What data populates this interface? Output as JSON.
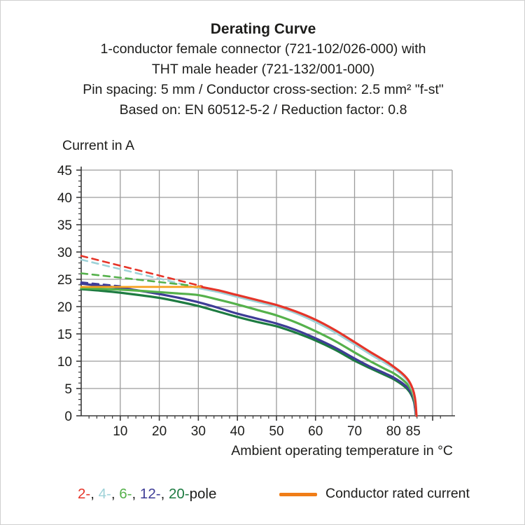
{
  "header": {
    "title": "Derating Curve",
    "subtitle_lines": [
      "1-conductor female connector (721-102/026-000) with",
      "THT male header (721-132/001-000)",
      "Pin spacing: 5 mm / Conductor cross-section: 2.5 mm² \"f-st\"",
      "Based on: EN 60512-5-2 / Reduction factor: 0.8"
    ]
  },
  "colors": {
    "pole2_red": "#e63529",
    "pole4_cyan": "#9ed2d8",
    "pole6_green": "#55b14b",
    "pole12_indigo": "#3e3c96",
    "pole20_darkgreen": "#1d7b41",
    "rated_orange_curve": "#f5a01e",
    "rated_orange_swatch": "#f07d17",
    "grid": "#9c9c9c",
    "axis": "#3a3a3a",
    "text": "#1d1d1b"
  },
  "chart_data": {
    "type": "line",
    "title": "Derating Curve",
    "xlabel": "Ambient operating temperature in °C",
    "ylabel": "Current in A",
    "xlim": [
      0,
      95
    ],
    "ylim": [
      0,
      45
    ],
    "grid": true,
    "x_gridlines": [
      10,
      20,
      30,
      40,
      50,
      60,
      70,
      80,
      90
    ],
    "x_tick_labels": [
      10,
      20,
      30,
      40,
      50,
      60,
      70,
      80,
      85
    ],
    "x_minor_step": 2,
    "y_ticks": [
      0,
      5,
      10,
      15,
      20,
      25,
      30,
      35,
      40,
      45
    ],
    "y_minor_step": 1,
    "series": [
      {
        "name": "2-pole-above-rated",
        "color": "#e63529",
        "style": "dashed",
        "width": 2.6,
        "points": [
          [
            0,
            29.3
          ],
          [
            31,
            23.7
          ]
        ]
      },
      {
        "name": "4-pole-above-rated",
        "color": "#9ed2d8",
        "style": "dashed",
        "width": 2.6,
        "points": [
          [
            0,
            28.6
          ],
          [
            29,
            23.55
          ]
        ]
      },
      {
        "name": "6-pole-above-rated",
        "color": "#55b14b",
        "style": "dashed",
        "width": 2.6,
        "points": [
          [
            0,
            26.1
          ],
          [
            27.5,
            23.9
          ]
        ]
      },
      {
        "name": "12-pole-above-rated",
        "color": "#3e3c96",
        "style": "dashed",
        "width": 2.6,
        "points": [
          [
            0,
            24.45
          ],
          [
            10,
            23.75
          ]
        ]
      },
      {
        "name": "20-pole",
        "color": "#1d7b41",
        "style": "solid",
        "width": 3.2,
        "points": [
          [
            0,
            23.2
          ],
          [
            5,
            22.9
          ],
          [
            10,
            22.55
          ],
          [
            15,
            22.1
          ],
          [
            20,
            21.6
          ],
          [
            25,
            20.9
          ],
          [
            30,
            20.1
          ],
          [
            35,
            19.1
          ],
          [
            40,
            18.1
          ],
          [
            45,
            17.2
          ],
          [
            50,
            16.4
          ],
          [
            55,
            15.2
          ],
          [
            60,
            13.8
          ],
          [
            65,
            12.1
          ],
          [
            70,
            10.1
          ],
          [
            74,
            8.7
          ],
          [
            78,
            7.4
          ],
          [
            80,
            6.7
          ],
          [
            82,
            5.8
          ],
          [
            83.5,
            4.9
          ],
          [
            84.5,
            3.9
          ],
          [
            85.2,
            2.6
          ],
          [
            85.5,
            1.3
          ],
          [
            85.7,
            0
          ]
        ]
      },
      {
        "name": "12-pole",
        "color": "#3e3c96",
        "style": "solid",
        "width": 3.2,
        "points": [
          [
            0,
            24.2
          ],
          [
            5,
            23.8
          ],
          [
            10,
            23.45
          ],
          [
            15,
            22.9
          ],
          [
            20,
            22.3
          ],
          [
            25,
            21.6
          ],
          [
            30,
            20.8
          ],
          [
            35,
            19.8
          ],
          [
            40,
            18.7
          ],
          [
            45,
            17.8
          ],
          [
            50,
            16.9
          ],
          [
            55,
            15.7
          ],
          [
            60,
            14.2
          ],
          [
            65,
            12.5
          ],
          [
            70,
            10.5
          ],
          [
            74,
            9.0
          ],
          [
            78,
            7.7
          ],
          [
            80,
            7.0
          ],
          [
            82,
            6.1
          ],
          [
            83.5,
            5.2
          ],
          [
            84.5,
            4.2
          ],
          [
            85.2,
            2.9
          ],
          [
            85.5,
            1.5
          ],
          [
            85.7,
            0
          ]
        ]
      },
      {
        "name": "6-pole",
        "color": "#55b14b",
        "style": "solid",
        "width": 3.2,
        "points": [
          [
            0,
            23.4
          ],
          [
            5,
            23.25
          ],
          [
            10,
            23.1
          ],
          [
            15,
            22.9
          ],
          [
            20,
            22.65
          ],
          [
            25,
            22.4
          ],
          [
            30,
            22.1
          ],
          [
            35,
            21.3
          ],
          [
            40,
            20.4
          ],
          [
            45,
            19.4
          ],
          [
            50,
            18.4
          ],
          [
            55,
            17.1
          ],
          [
            60,
            15.5
          ],
          [
            65,
            13.7
          ],
          [
            70,
            11.6
          ],
          [
            74,
            10.0
          ],
          [
            78,
            8.5
          ],
          [
            80,
            7.8
          ],
          [
            82,
            6.8
          ],
          [
            83.5,
            5.8
          ],
          [
            84.5,
            4.7
          ],
          [
            85.2,
            3.3
          ],
          [
            85.6,
            1.8
          ],
          [
            85.75,
            0
          ]
        ]
      },
      {
        "name": "4-pole",
        "color": "#9ed2d8",
        "style": "solid",
        "width": 3.2,
        "points": [
          [
            29,
            23.55
          ],
          [
            35,
            22.7
          ],
          [
            40,
            21.8
          ],
          [
            45,
            20.9
          ],
          [
            50,
            20.0
          ],
          [
            55,
            18.8
          ],
          [
            60,
            17.2
          ],
          [
            65,
            15.3
          ],
          [
            70,
            13.1
          ],
          [
            74,
            11.3
          ],
          [
            78,
            9.6
          ],
          [
            80,
            8.7
          ],
          [
            82,
            7.6
          ],
          [
            83.5,
            6.5
          ],
          [
            84.5,
            5.3
          ],
          [
            85.2,
            3.9
          ],
          [
            85.6,
            2.2
          ],
          [
            85.8,
            0
          ]
        ]
      },
      {
        "name": "2-pole",
        "color": "#e63529",
        "style": "solid",
        "width": 3.2,
        "points": [
          [
            30,
            23.7
          ],
          [
            35,
            23.0
          ],
          [
            40,
            22.1
          ],
          [
            45,
            21.2
          ],
          [
            50,
            20.3
          ],
          [
            55,
            19.1
          ],
          [
            60,
            17.6
          ],
          [
            65,
            15.7
          ],
          [
            70,
            13.5
          ],
          [
            74,
            11.7
          ],
          [
            78,
            10.0
          ],
          [
            80,
            9.0
          ],
          [
            82,
            7.9
          ],
          [
            83.5,
            6.8
          ],
          [
            84.5,
            5.6
          ],
          [
            85.2,
            4.2
          ],
          [
            85.6,
            2.5
          ],
          [
            85.85,
            0
          ]
        ]
      },
      {
        "name": "conductor-rated-current",
        "color": "#f5a01e",
        "style": "solid",
        "width": 2.8,
        "points": [
          [
            0,
            23.6
          ],
          [
            30.5,
            23.6
          ]
        ]
      }
    ]
  },
  "legend": {
    "poles": [
      {
        "label": "2-",
        "color": "#e63529"
      },
      {
        "label": "4-",
        "color": "#9ed2d8"
      },
      {
        "label": "6-",
        "color": "#55b14b"
      },
      {
        "label": "12-",
        "color": "#3e3c96"
      },
      {
        "label": "20-",
        "color": "#1d7b41"
      }
    ],
    "separator": ", ",
    "suffix": "pole",
    "rated_label": "Conductor rated current"
  }
}
